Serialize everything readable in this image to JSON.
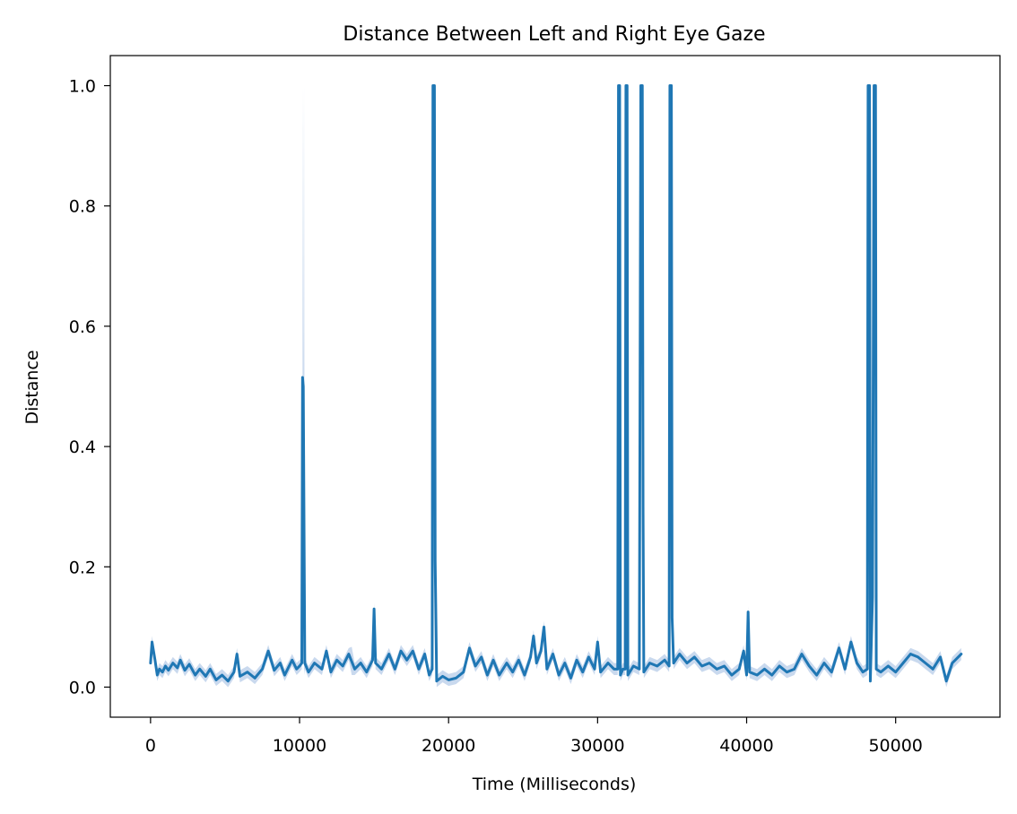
{
  "chart_data": {
    "type": "line",
    "title": "Distance Between Left and Right Eye Gaze",
    "xlabel": "Time (Milliseconds)",
    "ylabel": "Distance",
    "xlim": [
      -2700,
      57000
    ],
    "ylim": [
      -0.05,
      1.05
    ],
    "xticks": [
      0,
      10000,
      20000,
      30000,
      40000,
      50000
    ],
    "xtick_labels": [
      "0",
      "10000",
      "20000",
      "30000",
      "40000",
      "50000"
    ],
    "yticks": [
      0.0,
      0.2,
      0.4,
      0.6,
      0.8,
      1.0
    ],
    "ytick_labels": [
      "0.0",
      "0.2",
      "0.4",
      "0.6",
      "0.8",
      "1.0"
    ],
    "grid": false,
    "legend": "none",
    "colors": {
      "line": "#1f77b4",
      "band": "#c9d9ee"
    },
    "series": [
      {
        "values": [
          [
            0,
            0.04
          ],
          [
            100,
            0.075
          ],
          [
            200,
            0.06
          ],
          [
            300,
            0.045
          ],
          [
            450,
            0.02
          ],
          [
            600,
            0.03
          ],
          [
            800,
            0.025
          ],
          [
            1000,
            0.035
          ],
          [
            1200,
            0.028
          ],
          [
            1500,
            0.04
          ],
          [
            1800,
            0.032
          ],
          [
            2000,
            0.045
          ],
          [
            2300,
            0.028
          ],
          [
            2600,
            0.038
          ],
          [
            3000,
            0.02
          ],
          [
            3300,
            0.03
          ],
          [
            3700,
            0.018
          ],
          [
            4000,
            0.03
          ],
          [
            4400,
            0.012
          ],
          [
            4800,
            0.02
          ],
          [
            5200,
            0.01
          ],
          [
            5600,
            0.025
          ],
          [
            5800,
            0.055
          ],
          [
            6000,
            0.018
          ],
          [
            6500,
            0.025
          ],
          [
            7000,
            0.015
          ],
          [
            7500,
            0.03
          ],
          [
            7900,
            0.06
          ],
          [
            8300,
            0.028
          ],
          [
            8700,
            0.04
          ],
          [
            9000,
            0.02
          ],
          [
            9500,
            0.045
          ],
          [
            9800,
            0.03
          ],
          [
            10000,
            0.035
          ],
          [
            10150,
            0.04
          ],
          [
            10200,
            0.515
          ],
          [
            10250,
            0.5
          ],
          [
            10350,
            0.04
          ],
          [
            10600,
            0.025
          ],
          [
            11000,
            0.04
          ],
          [
            11500,
            0.03
          ],
          [
            11800,
            0.06
          ],
          [
            12100,
            0.025
          ],
          [
            12500,
            0.045
          ],
          [
            12900,
            0.035
          ],
          [
            13300,
            0.055
          ],
          [
            13700,
            0.03
          ],
          [
            14100,
            0.04
          ],
          [
            14500,
            0.025
          ],
          [
            14900,
            0.045
          ],
          [
            15000,
            0.13
          ],
          [
            15100,
            0.04
          ],
          [
            15500,
            0.03
          ],
          [
            16000,
            0.055
          ],
          [
            16400,
            0.03
          ],
          [
            16800,
            0.06
          ],
          [
            17200,
            0.045
          ],
          [
            17600,
            0.06
          ],
          [
            18000,
            0.03
          ],
          [
            18400,
            0.055
          ],
          [
            18700,
            0.02
          ],
          [
            18900,
            0.03
          ],
          [
            18950,
            1.0
          ],
          [
            19050,
            1.0
          ],
          [
            19100,
            0.21
          ],
          [
            19200,
            0.01
          ],
          [
            19600,
            0.018
          ],
          [
            20000,
            0.012
          ],
          [
            20500,
            0.015
          ],
          [
            21000,
            0.025
          ],
          [
            21400,
            0.065
          ],
          [
            21800,
            0.035
          ],
          [
            22200,
            0.05
          ],
          [
            22600,
            0.02
          ],
          [
            23000,
            0.045
          ],
          [
            23400,
            0.02
          ],
          [
            23900,
            0.04
          ],
          [
            24300,
            0.025
          ],
          [
            24700,
            0.045
          ],
          [
            25100,
            0.02
          ],
          [
            25500,
            0.05
          ],
          [
            25700,
            0.085
          ],
          [
            25900,
            0.04
          ],
          [
            26200,
            0.06
          ],
          [
            26400,
            0.1
          ],
          [
            26600,
            0.03
          ],
          [
            27000,
            0.055
          ],
          [
            27400,
            0.02
          ],
          [
            27800,
            0.04
          ],
          [
            28200,
            0.015
          ],
          [
            28600,
            0.045
          ],
          [
            29000,
            0.025
          ],
          [
            29400,
            0.05
          ],
          [
            29800,
            0.03
          ],
          [
            30000,
            0.075
          ],
          [
            30200,
            0.025
          ],
          [
            30700,
            0.04
          ],
          [
            31100,
            0.03
          ],
          [
            31350,
            0.03
          ],
          [
            31400,
            1.0
          ],
          [
            31480,
            1.0
          ],
          [
            31530,
            0.02
          ],
          [
            31700,
            0.03
          ],
          [
            31850,
            0.03
          ],
          [
            31900,
            1.0
          ],
          [
            31980,
            1.0
          ],
          [
            32030,
            0.02
          ],
          [
            32400,
            0.035
          ],
          [
            32800,
            0.03
          ],
          [
            32900,
            1.0
          ],
          [
            33000,
            1.0
          ],
          [
            33050,
            0.3
          ],
          [
            33100,
            0.025
          ],
          [
            33500,
            0.04
          ],
          [
            34000,
            0.035
          ],
          [
            34500,
            0.045
          ],
          [
            34800,
            0.035
          ],
          [
            34850,
            1.0
          ],
          [
            34950,
            1.0
          ],
          [
            35000,
            0.115
          ],
          [
            35100,
            0.04
          ],
          [
            35500,
            0.055
          ],
          [
            36000,
            0.04
          ],
          [
            36500,
            0.05
          ],
          [
            37000,
            0.035
          ],
          [
            37500,
            0.04
          ],
          [
            38000,
            0.03
          ],
          [
            38500,
            0.035
          ],
          [
            39000,
            0.02
          ],
          [
            39500,
            0.03
          ],
          [
            39800,
            0.06
          ],
          [
            40000,
            0.02
          ],
          [
            40100,
            0.125
          ],
          [
            40200,
            0.025
          ],
          [
            40700,
            0.02
          ],
          [
            41200,
            0.03
          ],
          [
            41700,
            0.02
          ],
          [
            42200,
            0.035
          ],
          [
            42700,
            0.025
          ],
          [
            43200,
            0.03
          ],
          [
            43700,
            0.055
          ],
          [
            44200,
            0.035
          ],
          [
            44700,
            0.02
          ],
          [
            45200,
            0.04
          ],
          [
            45700,
            0.025
          ],
          [
            46200,
            0.065
          ],
          [
            46600,
            0.03
          ],
          [
            47000,
            0.075
          ],
          [
            47400,
            0.04
          ],
          [
            47800,
            0.025
          ],
          [
            48100,
            0.03
          ],
          [
            48150,
            1.0
          ],
          [
            48250,
            1.0
          ],
          [
            48300,
            0.01
          ],
          [
            48450,
            0.15
          ],
          [
            48550,
            1.0
          ],
          [
            48650,
            1.0
          ],
          [
            48700,
            0.03
          ],
          [
            49000,
            0.025
          ],
          [
            49500,
            0.035
          ],
          [
            50000,
            0.025
          ],
          [
            50500,
            0.04
          ],
          [
            51000,
            0.055
          ],
          [
            51500,
            0.05
          ],
          [
            52000,
            0.04
          ],
          [
            52500,
            0.03
          ],
          [
            53000,
            0.05
          ],
          [
            53400,
            0.01
          ],
          [
            53800,
            0.04
          ],
          [
            54200,
            0.05
          ],
          [
            54400,
            0.055
          ]
        ]
      }
    ],
    "band_spikes": [
      {
        "x": 10200,
        "upper": 1.0
      },
      {
        "x": 10300,
        "upper": 1.0
      },
      {
        "x": 13500,
        "upper": 0.067
      },
      {
        "x": 34800,
        "upper": 0.32
      }
    ]
  }
}
